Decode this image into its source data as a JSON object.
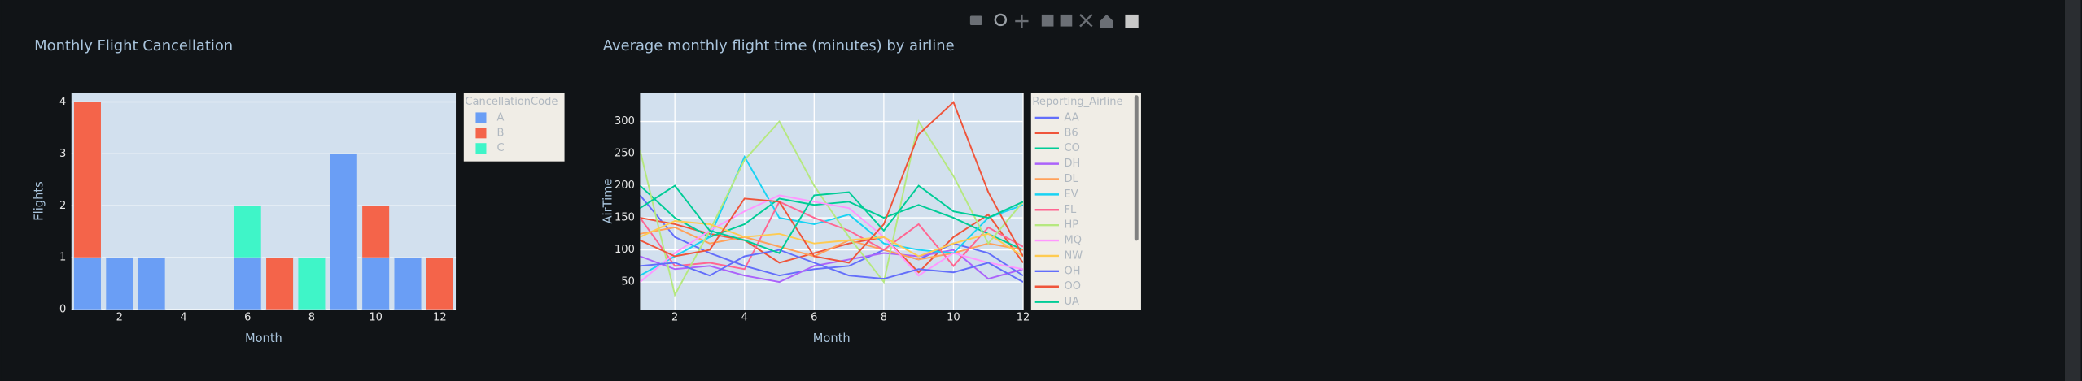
{
  "chart_data": [
    {
      "type": "bar",
      "barmode": "stack",
      "title": "Monthly Flight Cancellation",
      "x_label": "Month",
      "y_label": "Flights",
      "legend_title": "CancellationCode",
      "categories": [
        1,
        2,
        3,
        4,
        5,
        6,
        7,
        8,
        9,
        10,
        11,
        12
      ],
      "series": [
        {
          "name": "A",
          "color": "#6a9ef5",
          "values": [
            1,
            1,
            1,
            0,
            0,
            1,
            0,
            0,
            3,
            1,
            1,
            0
          ]
        },
        {
          "name": "B",
          "color": "#f4644a",
          "values": [
            3,
            0,
            0,
            0,
            0,
            0,
            1,
            0,
            0,
            1,
            0,
            1
          ]
        },
        {
          "name": "C",
          "color": "#3ff5c8",
          "values": [
            0,
            0,
            0,
            0,
            0,
            1,
            0,
            1,
            0,
            0,
            0,
            0
          ]
        }
      ],
      "xlim": [
        0.5,
        12.5
      ],
      "xticks": [
        2,
        4,
        6,
        8,
        10,
        12
      ],
      "ylim": [
        0,
        4.18
      ],
      "yticks": [
        0,
        1,
        2,
        3,
        4
      ],
      "grid": true
    },
    {
      "type": "line",
      "title": "Average monthly flight time (minutes) by airline",
      "x_label": "Month",
      "y_label": "AirTime",
      "legend_title": "Reporting_Airline",
      "x": [
        1,
        2,
        3,
        4,
        5,
        6,
        7,
        8,
        9,
        10,
        11,
        12
      ],
      "series": [
        {
          "name": "AA",
          "color": "#636efa",
          "values": [
            185,
            120,
            95,
            75,
            60,
            70,
            75,
            100,
            85,
            110,
            95,
            60
          ]
        },
        {
          "name": "B6",
          "color": "#ef553b",
          "values": [
            150,
            140,
            125,
            115,
            80,
            95,
            110,
            120,
            65,
            120,
            155,
            80
          ]
        },
        {
          "name": "CO",
          "color": "#00cc96",
          "values": [
            200,
            150,
            120,
            140,
            180,
            170,
            175,
            150,
            170,
            150,
            125,
            100
          ]
        },
        {
          "name": "DH",
          "color": "#ab63fa",
          "values": [
            90,
            70,
            75,
            60,
            50,
            75,
            85,
            95,
            90,
            100,
            55,
            70
          ]
        },
        {
          "name": "DL",
          "color": "#ffa15a",
          "values": [
            125,
            135,
            110,
            120,
            105,
            90,
            115,
            100,
            85,
            95,
            110,
            100
          ]
        },
        {
          "name": "EV",
          "color": "#19d3f3",
          "values": [
            60,
            90,
            120,
            245,
            150,
            140,
            155,
            110,
            100,
            95,
            150,
            170
          ]
        },
        {
          "name": "FL",
          "color": "#ff6692",
          "values": [
            150,
            75,
            80,
            70,
            175,
            150,
            130,
            100,
            140,
            75,
            135,
            105
          ]
        },
        {
          "name": "HP",
          "color": "#b6e880",
          "values": [
            255,
            30,
            130,
            240,
            300,
            200,
            120,
            50,
            300,
            215,
            110,
            175
          ]
        },
        {
          "name": "MQ",
          "color": "#ff97ff",
          "values": [
            50,
            95,
            130,
            160,
            185,
            175,
            165,
            120,
            60,
            95,
            80,
            70
          ]
        },
        {
          "name": "NW",
          "color": "#fecb52",
          "values": [
            120,
            145,
            140,
            120,
            125,
            110,
            115,
            120,
            90,
            110,
            125,
            90
          ]
        },
        {
          "name": "OH",
          "color": "#636efa",
          "values": [
            75,
            80,
            60,
            90,
            100,
            80,
            60,
            55,
            70,
            65,
            80,
            50
          ]
        },
        {
          "name": "OO",
          "color": "#ef553b",
          "values": [
            115,
            90,
            100,
            180,
            175,
            90,
            80,
            140,
            280,
            330,
            190,
            90
          ]
        },
        {
          "name": "UA",
          "color": "#00cc96",
          "values": [
            165,
            200,
            130,
            115,
            95,
            185,
            190,
            130,
            200,
            160,
            150,
            175
          ]
        }
      ],
      "xlim": [
        1,
        12
      ],
      "xticks": [
        2,
        4,
        6,
        8,
        10,
        12
      ],
      "ylim": [
        7,
        345
      ],
      "yticks": [
        50,
        100,
        150,
        200,
        250,
        300
      ],
      "grid": true
    }
  ]
}
